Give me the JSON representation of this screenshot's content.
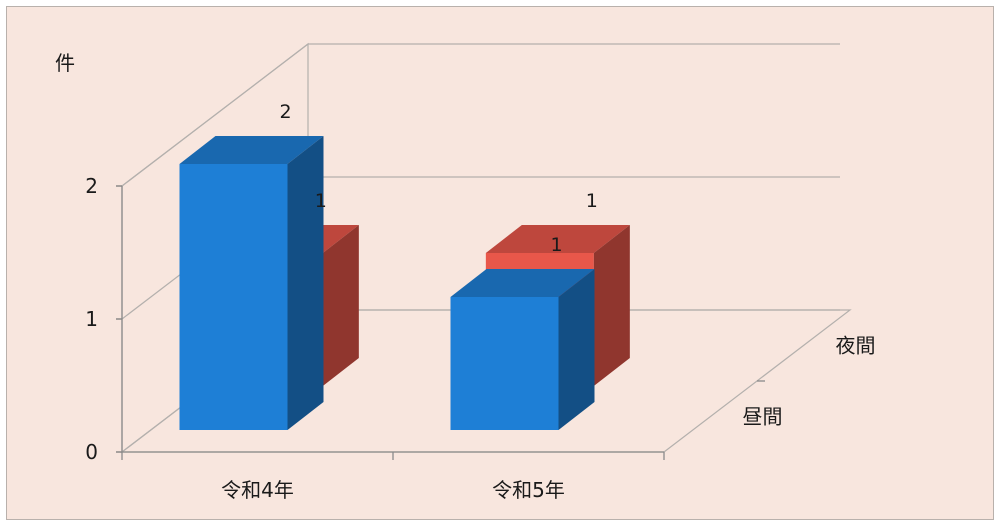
{
  "chart_data": {
    "type": "bar",
    "variant": "3d-clustered",
    "title": "",
    "ylabel": "件",
    "xlabel": "",
    "categories": [
      "令和4年",
      "令和5年"
    ],
    "series": [
      {
        "name": "昼間",
        "values": [
          2,
          1
        ],
        "color": "#1e7fd6"
      },
      {
        "name": "夜間",
        "values": [
          1,
          1
        ],
        "color": "#e8574a"
      }
    ],
    "y_ticks": [
      "0",
      "1",
      "2"
    ],
    "ylim": [
      0,
      2
    ],
    "grid": true,
    "data_labels": true,
    "background": "#f8e6de"
  }
}
